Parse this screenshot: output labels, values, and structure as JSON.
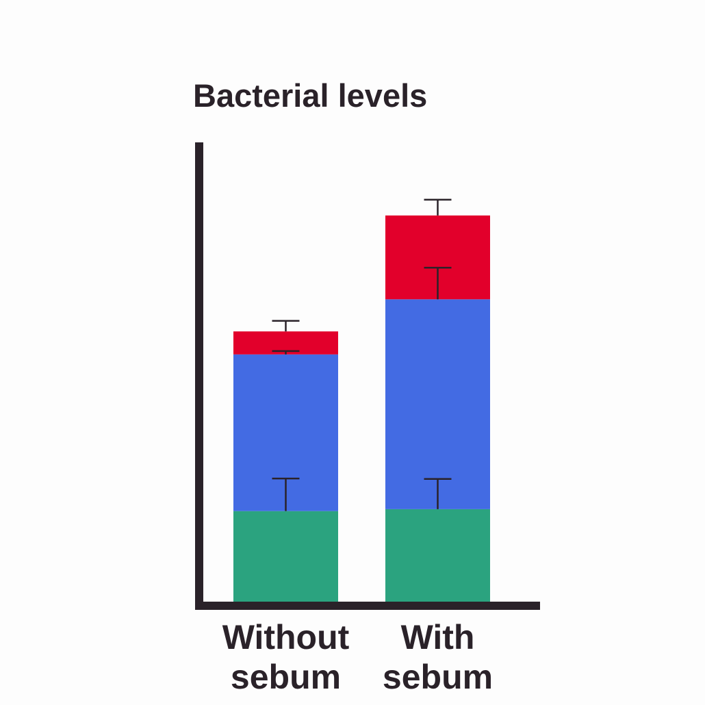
{
  "chart_data": {
    "type": "bar",
    "stacked": true,
    "title": "Bacterial levels",
    "xlabel": "",
    "ylabel": "",
    "grid": false,
    "legend": "none",
    "categories": [
      "Without sebum",
      "With sebum"
    ],
    "category_lines": [
      [
        "Without",
        "sebum"
      ],
      [
        "With",
        "sebum"
      ]
    ],
    "series": [
      {
        "color": "#2ba37f",
        "values": [
          18.9,
          19.3
        ],
        "error": [
          6.8,
          6.3
        ]
      },
      {
        "color": "#436be3",
        "values": [
          32.7,
          43.8
        ],
        "error": [
          0.7,
          6.6
        ]
      },
      {
        "color": "#e2002b",
        "values": [
          4.8,
          17.5
        ],
        "error": [
          2.2,
          3.3
        ]
      }
    ],
    "ylim": [
      0,
      100
    ],
    "colors": {
      "axis": "#2a2229",
      "text": "#2a2229",
      "error_bar": "#2a2229"
    }
  }
}
